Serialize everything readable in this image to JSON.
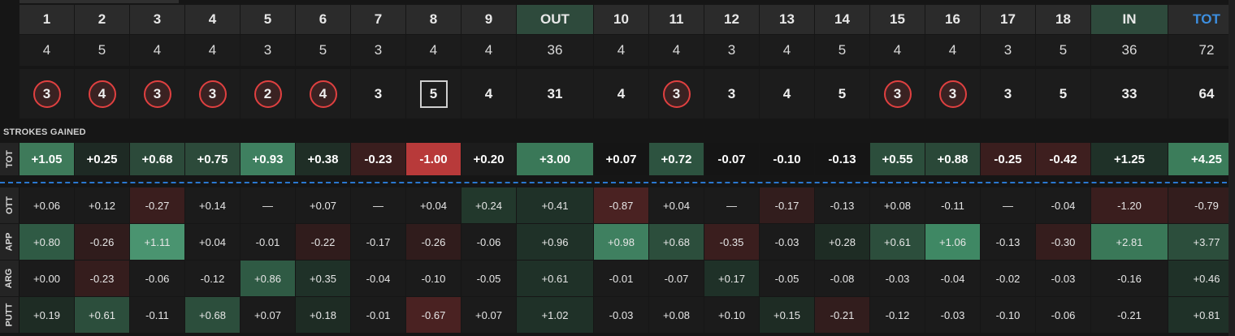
{
  "holes": [
    "1",
    "2",
    "3",
    "4",
    "5",
    "6",
    "7",
    "8",
    "9",
    "OUT",
    "10",
    "11",
    "12",
    "13",
    "14",
    "15",
    "16",
    "17",
    "18",
    "IN",
    "TOT"
  ],
  "par": [
    "4",
    "5",
    "4",
    "4",
    "3",
    "5",
    "3",
    "4",
    "4",
    "36",
    "4",
    "4",
    "3",
    "4",
    "5",
    "4",
    "4",
    "3",
    "5",
    "36",
    "72"
  ],
  "scores": [
    {
      "v": "3",
      "t": "birdie"
    },
    {
      "v": "4",
      "t": "birdie"
    },
    {
      "v": "3",
      "t": "birdie"
    },
    {
      "v": "3",
      "t": "birdie"
    },
    {
      "v": "2",
      "t": "birdie"
    },
    {
      "v": "4",
      "t": "birdie"
    },
    {
      "v": "3",
      "t": "par"
    },
    {
      "v": "5",
      "t": "bogey"
    },
    {
      "v": "4",
      "t": "par"
    },
    {
      "v": "31",
      "t": "sum"
    },
    {
      "v": "4",
      "t": "par"
    },
    {
      "v": "3",
      "t": "birdie"
    },
    {
      "v": "3",
      "t": "par"
    },
    {
      "v": "4",
      "t": "par"
    },
    {
      "v": "5",
      "t": "par"
    },
    {
      "v": "3",
      "t": "birdie"
    },
    {
      "v": "3",
      "t": "birdie"
    },
    {
      "v": "3",
      "t": "par"
    },
    {
      "v": "5",
      "t": "par"
    },
    {
      "v": "33",
      "t": "sum"
    },
    {
      "v": "64",
      "t": "sum"
    }
  ],
  "strokes_gained_label": "STROKES GAINED",
  "rows": [
    {
      "label": "TOT",
      "values": [
        "+1.05",
        "+0.25",
        "+0.68",
        "+0.75",
        "+0.93",
        "+0.38",
        "-0.23",
        "-1.00",
        "+0.20",
        "+3.00",
        "+0.07",
        "+0.72",
        "-0.07",
        "-0.10",
        "-0.13",
        "+0.55",
        "+0.88",
        "-0.25",
        "-0.42",
        "+1.25",
        "+4.25"
      ],
      "colors": [
        "#3e7a5a",
        "#1e2a24",
        "#2c4a3a",
        "#2c4a3a",
        "#3f8060",
        "#1f2e26",
        "#3a1e1e",
        "#b83a3a",
        "#1c1c1c",
        "#3a7858",
        "#151515",
        "#2d5340",
        "#151515",
        "#151515",
        "#151515",
        "#2c4e3c",
        "#2a4838",
        "#3a1e1e",
        "#3e1f1f",
        "#1f3128",
        "#3c7d5b"
      ]
    },
    {
      "label": "OTT",
      "values": [
        "+0.06",
        "+0.12",
        "-0.27",
        "+0.14",
        "—",
        "+0.07",
        "—",
        "+0.04",
        "+0.24",
        "+0.41",
        "-0.87",
        "+0.04",
        "—",
        "-0.17",
        "-0.13",
        "+0.08",
        "-0.11",
        "—",
        "-0.04",
        "-1.20",
        "-0.79"
      ],
      "colors": [
        "#1b1b1b",
        "#1b1b1b",
        "#3a1e1e",
        "#1b1b1b",
        "#1b1b1b",
        "#1b1b1b",
        "#1b1b1b",
        "#1b1b1b",
        "#22382c",
        "#1f3128",
        "#4a2222",
        "#1b1b1b",
        "#1b1b1b",
        "#321d1d",
        "#1b1b1b",
        "#1b1b1b",
        "#1b1b1b",
        "#1b1b1b",
        "#1b1b1b",
        "#3a1e1e",
        "#331d1d"
      ]
    },
    {
      "label": "APP",
      "values": [
        "+0.80",
        "-0.26",
        "+1.11",
        "+0.04",
        "-0.01",
        "-0.22",
        "-0.17",
        "-0.26",
        "-0.06",
        "+0.96",
        "+0.98",
        "+0.68",
        "-0.35",
        "-0.03",
        "+0.28",
        "+0.61",
        "+1.06",
        "-0.13",
        "-0.30",
        "+2.81",
        "+3.77"
      ],
      "colors": [
        "#2f5a44",
        "#301c1c",
        "#4a9470",
        "#1b1b1b",
        "#1b1b1b",
        "#301c1c",
        "#1b1b1b",
        "#301c1c",
        "#1b1b1b",
        "#1f3128",
        "#3f8060",
        "#2c4e3c",
        "#3a1e1e",
        "#1b1b1b",
        "#1e2c24",
        "#2c4e3c",
        "#3f8864",
        "#1b1b1b",
        "#351d1d",
        "#3a7858",
        "#2c4e3c"
      ]
    },
    {
      "label": "ARG",
      "values": [
        "+0.00",
        "-0.23",
        "-0.06",
        "-0.12",
        "+0.86",
        "+0.35",
        "-0.04",
        "-0.10",
        "-0.05",
        "+0.61",
        "-0.01",
        "-0.07",
        "+0.17",
        "-0.05",
        "-0.08",
        "-0.03",
        "-0.04",
        "-0.02",
        "-0.03",
        "-0.16",
        "+0.46"
      ],
      "colors": [
        "#1b1b1b",
        "#351d1d",
        "#1b1b1b",
        "#1b1b1b",
        "#2f5a44",
        "#1f3128",
        "#1b1b1b",
        "#1b1b1b",
        "#1b1b1b",
        "#1f3128",
        "#1b1b1b",
        "#1b1b1b",
        "#1f3128",
        "#1b1b1b",
        "#1b1b1b",
        "#1b1b1b",
        "#1b1b1b",
        "#1b1b1b",
        "#1b1b1b",
        "#1b1b1b",
        "#1f3128"
      ]
    },
    {
      "label": "PUTT",
      "values": [
        "+0.19",
        "+0.61",
        "-0.11",
        "+0.68",
        "+0.07",
        "+0.18",
        "-0.01",
        "-0.67",
        "+0.07",
        "+1.02",
        "-0.03",
        "+0.08",
        "+0.10",
        "+0.15",
        "-0.21",
        "-0.12",
        "-0.03",
        "-0.10",
        "-0.06",
        "-0.21",
        "+0.81"
      ],
      "colors": [
        "#1e2c24",
        "#2c4e3c",
        "#1b1b1b",
        "#2c4e3c",
        "#1b1b1b",
        "#1e2c24",
        "#1b1b1b",
        "#4a2222",
        "#1b1b1b",
        "#1f3128",
        "#1b1b1b",
        "#1b1b1b",
        "#1b1b1b",
        "#1e2c24",
        "#321d1d",
        "#1b1b1b",
        "#1b1b1b",
        "#1b1b1b",
        "#1b1b1b",
        "#1b1b1b",
        "#1f3128"
      ]
    }
  ]
}
